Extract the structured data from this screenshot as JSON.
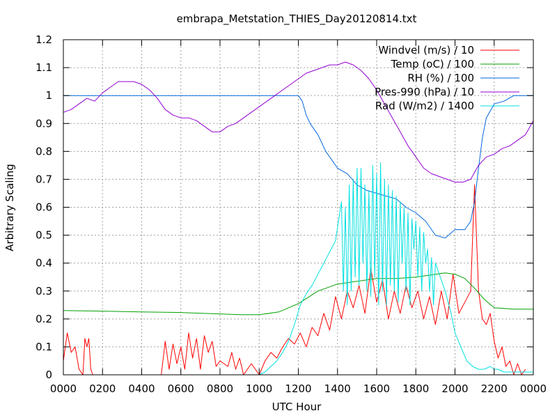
{
  "chart_data": {
    "type": "line",
    "title": "embrapa_Metstation_THIES_Day20120814.txt",
    "xlabel": "UTC Hour",
    "ylabel": "Arbitrary Scaling",
    "xlim": [
      0,
      2400
    ],
    "ylim": [
      0,
      1.2
    ],
    "grid": true,
    "legend_position": "top-right",
    "x_ticks": [
      "0000",
      "0200",
      "0400",
      "0600",
      "0800",
      "1000",
      "1200",
      "1400",
      "1600",
      "1800",
      "2000",
      "2200",
      "0000"
    ],
    "y_ticks": [
      "0",
      "0.1",
      "0.2",
      "0.3",
      "0.4",
      "0.5",
      "0.6",
      "0.7",
      "0.8",
      "0.9",
      "1",
      "1.1",
      "1.2"
    ],
    "series": [
      {
        "name": "Windvel (m/s) / 10",
        "color": "#ff0000",
        "x": [
          0,
          20,
          40,
          60,
          80,
          100,
          110,
          120,
          130,
          140,
          150,
          500,
          520,
          540,
          560,
          580,
          600,
          620,
          640,
          660,
          680,
          700,
          720,
          740,
          760,
          780,
          800,
          840,
          860,
          880,
          900,
          920,
          960,
          1000,
          1030,
          1060,
          1090,
          1120,
          1150,
          1180,
          1210,
          1240,
          1270,
          1300,
          1330,
          1360,
          1390,
          1420,
          1450,
          1480,
          1510,
          1540,
          1570,
          1600,
          1630,
          1660,
          1690,
          1720,
          1750,
          1780,
          1810,
          1840,
          1870,
          1900,
          1930,
          1960,
          1990,
          2020,
          2050,
          2080,
          2100,
          2120,
          2140,
          2160,
          2180,
          2200,
          2220,
          2240,
          2260,
          2280,
          2300,
          2320,
          2340,
          2360
        ],
        "y": [
          0.05,
          0.15,
          0.08,
          0.1,
          0.02,
          0,
          0.13,
          0.1,
          0.13,
          0.02,
          0,
          0,
          0.12,
          0.02,
          0.11,
          0.04,
          0.1,
          0.02,
          0.15,
          0.06,
          0.13,
          0.02,
          0.14,
          0.08,
          0.12,
          0.03,
          0.05,
          0.03,
          0.08,
          0.02,
          0.06,
          0,
          0.04,
          0,
          0.05,
          0.08,
          0.06,
          0.1,
          0.13,
          0.11,
          0.15,
          0.1,
          0.17,
          0.14,
          0.22,
          0.16,
          0.28,
          0.2,
          0.3,
          0.24,
          0.32,
          0.22,
          0.38,
          0.26,
          0.34,
          0.2,
          0.3,
          0.22,
          0.32,
          0.24,
          0.3,
          0.2,
          0.28,
          0.18,
          0.3,
          0.2,
          0.36,
          0.22,
          0.26,
          0.3,
          0.68,
          0.3,
          0.2,
          0.18,
          0.22,
          0.12,
          0.06,
          0.1,
          0.03,
          0.05,
          0,
          0.04,
          0,
          0.02
        ]
      },
      {
        "name": "Temp (oC) / 100",
        "color": "#00a000",
        "x": [
          0,
          200,
          400,
          600,
          800,
          900,
          1000,
          1100,
          1200,
          1300,
          1400,
          1500,
          1600,
          1700,
          1800,
          1900,
          1950,
          2000,
          2050,
          2100,
          2150,
          2200,
          2300,
          2400
        ],
        "y": [
          0.23,
          0.228,
          0.225,
          0.223,
          0.218,
          0.215,
          0.215,
          0.225,
          0.255,
          0.3,
          0.325,
          0.335,
          0.345,
          0.345,
          0.35,
          0.36,
          0.365,
          0.36,
          0.345,
          0.31,
          0.27,
          0.24,
          0.235,
          0.235
        ]
      },
      {
        "name": "RH (%) / 100",
        "color": "#0066dd",
        "x": [
          0,
          600,
          1200,
          1220,
          1240,
          1260,
          1300,
          1340,
          1400,
          1450,
          1500,
          1550,
          1600,
          1650,
          1700,
          1750,
          1800,
          1850,
          1900,
          1950,
          2000,
          2050,
          2080,
          2100,
          2120,
          2140,
          2160,
          2200,
          2250,
          2300,
          2400
        ],
        "y": [
          1,
          1,
          1,
          0.98,
          0.93,
          0.9,
          0.86,
          0.8,
          0.74,
          0.72,
          0.68,
          0.66,
          0.65,
          0.64,
          0.63,
          0.6,
          0.58,
          0.55,
          0.5,
          0.49,
          0.52,
          0.52,
          0.55,
          0.62,
          0.74,
          0.85,
          0.92,
          0.97,
          0.98,
          1,
          1
        ]
      },
      {
        "name": "Pres-990 (hPa) / 10",
        "color": "#9400d3",
        "x": [
          0,
          40,
          80,
          120,
          160,
          200,
          240,
          280,
          320,
          360,
          400,
          440,
          480,
          520,
          560,
          600,
          640,
          680,
          720,
          760,
          800,
          840,
          880,
          920,
          960,
          1000,
          1040,
          1080,
          1120,
          1160,
          1200,
          1240,
          1280,
          1320,
          1360,
          1400,
          1440,
          1480,
          1520,
          1560,
          1600,
          1640,
          1680,
          1720,
          1760,
          1800,
          1840,
          1880,
          1920,
          1960,
          2000,
          2040,
          2080,
          2120,
          2160,
          2200,
          2240,
          2280,
          2320,
          2360,
          2400
        ],
        "y": [
          0.94,
          0.95,
          0.97,
          0.99,
          0.98,
          1.01,
          1.03,
          1.05,
          1.05,
          1.05,
          1.04,
          1.02,
          0.99,
          0.95,
          0.93,
          0.92,
          0.92,
          0.91,
          0.89,
          0.87,
          0.87,
          0.89,
          0.9,
          0.92,
          0.94,
          0.96,
          0.98,
          1,
          1.02,
          1.04,
          1.06,
          1.08,
          1.09,
          1.1,
          1.11,
          1.11,
          1.12,
          1.11,
          1.09,
          1.06,
          1.02,
          0.97,
          0.92,
          0.87,
          0.82,
          0.78,
          0.74,
          0.72,
          0.71,
          0.7,
          0.69,
          0.69,
          0.7,
          0.75,
          0.78,
          0.79,
          0.81,
          0.82,
          0.84,
          0.86,
          0.91
        ]
      },
      {
        "name": "Rad (W/m2) / 1400",
        "color": "#00e0e0",
        "x": [
          0,
          950,
          1000,
          1030,
          1060,
          1090,
          1120,
          1150,
          1180,
          1210,
          1240,
          1270,
          1300,
          1330,
          1360,
          1390,
          1420,
          1430,
          1440,
          1450,
          1460,
          1470,
          1480,
          1490,
          1500,
          1510,
          1520,
          1530,
          1540,
          1550,
          1560,
          1570,
          1580,
          1590,
          1600,
          1610,
          1620,
          1630,
          1640,
          1650,
          1660,
          1670,
          1680,
          1690,
          1700,
          1710,
          1720,
          1730,
          1740,
          1750,
          1760,
          1770,
          1780,
          1790,
          1800,
          1810,
          1820,
          1830,
          1840,
          1850,
          1860,
          1870,
          1880,
          1890,
          1900,
          1920,
          1950,
          1980,
          2000,
          2030,
          2060,
          2090,
          2120,
          2150,
          2180,
          2200,
          2220,
          2250,
          2400
        ],
        "y": [
          0,
          0,
          0,
          0.01,
          0.03,
          0.05,
          0.08,
          0.12,
          0.18,
          0.25,
          0.29,
          0.32,
          0.36,
          0.4,
          0.44,
          0.48,
          0.62,
          0.3,
          0.6,
          0.25,
          0.68,
          0.3,
          0.7,
          0.35,
          0.74,
          0.32,
          0.74,
          0.4,
          0.68,
          0.3,
          0.66,
          0.28,
          0.75,
          0.35,
          0.72,
          0.25,
          0.76,
          0.3,
          0.7,
          0.25,
          0.68,
          0.32,
          0.66,
          0.3,
          0.64,
          0.26,
          0.62,
          0.4,
          0.6,
          0.3,
          0.58,
          0.25,
          0.56,
          0.45,
          0.55,
          0.35,
          0.53,
          0.3,
          0.51,
          0.4,
          0.45,
          0.3,
          0.42,
          0.25,
          0.4,
          0.36,
          0.3,
          0.22,
          0.15,
          0.1,
          0.05,
          0.03,
          0.02,
          0.02,
          0.03,
          0.02,
          0.02,
          0.01,
          0.01
        ]
      }
    ]
  }
}
